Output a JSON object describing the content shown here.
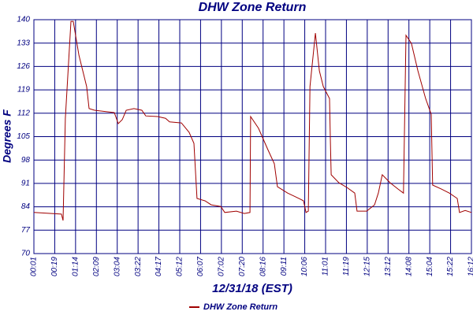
{
  "chart_data": {
    "type": "line",
    "title": "DHW Zone Return",
    "x_label": "12/31/18 (EST)",
    "y_label": "Degrees F",
    "xlim": [
      0,
      21
    ],
    "ylim": [
      70,
      140
    ],
    "xticks": [
      {
        "value": 0,
        "label": "00:01"
      },
      {
        "value": 1,
        "label": "00:19"
      },
      {
        "value": 2,
        "label": "01:14"
      },
      {
        "value": 3,
        "label": "02:09"
      },
      {
        "value": 4,
        "label": "03:04"
      },
      {
        "value": 5,
        "label": "03:22"
      },
      {
        "value": 6,
        "label": "04:17"
      },
      {
        "value": 7,
        "label": "05:12"
      },
      {
        "value": 8,
        "label": "06:07"
      },
      {
        "value": 9,
        "label": "07:02"
      },
      {
        "value": 10,
        "label": "07:20"
      },
      {
        "value": 11,
        "label": "08:16"
      },
      {
        "value": 12,
        "label": "09:11"
      },
      {
        "value": 13,
        "label": "10:06"
      },
      {
        "value": 14,
        "label": "11:01"
      },
      {
        "value": 15,
        "label": "11:19"
      },
      {
        "value": 16,
        "label": "12:15"
      },
      {
        "value": 17,
        "label": "13:12"
      },
      {
        "value": 18,
        "label": "14:08"
      },
      {
        "value": 19,
        "label": "15:04"
      },
      {
        "value": 20,
        "label": "15:22"
      },
      {
        "value": 21,
        "label": "16:12"
      }
    ],
    "yticks": [
      70,
      77,
      84,
      91,
      98,
      105,
      112,
      119,
      126,
      133,
      140
    ],
    "grid": true,
    "legend": "bottom",
    "series": [
      {
        "name": "DHW Zone Return",
        "color": "#a00000",
        "x": [
          0,
          1.32,
          1.4,
          1.51,
          1.78,
          1.89,
          2.16,
          2.53,
          2.65,
          2.91,
          3.86,
          4.05,
          4.24,
          4.43,
          4.8,
          5.18,
          5.37,
          5.94,
          6.32,
          6.51,
          7.08,
          7.45,
          7.68,
          7.83,
          8.21,
          8.51,
          8.97,
          9.16,
          9.72,
          10.1,
          10.37,
          10.4,
          10.78,
          11.23,
          11.54,
          11.69,
          12.18,
          12.56,
          12.94,
          13.06,
          13.17,
          13.25,
          13.51,
          13.7,
          13.89,
          14.19,
          14.23,
          14.27,
          14.64,
          15.02,
          15.4,
          15.51,
          15.97,
          16.35,
          16.53,
          16.72,
          17.1,
          17.48,
          17.74,
          17.86,
          18.12,
          18.43,
          18.8,
          19.07,
          19.14,
          19.56,
          19.94,
          20.32,
          20.43,
          20.7,
          21
        ],
        "values": [
          82.3,
          81.8,
          79.9,
          110.5,
          139.5,
          139.5,
          129.4,
          120,
          113.4,
          112.9,
          112.2,
          108.9,
          110.1,
          112.9,
          113.4,
          112.9,
          111.2,
          111,
          110.5,
          109.4,
          109.1,
          106.3,
          103,
          86.5,
          85.8,
          84.6,
          84.1,
          82.3,
          82.7,
          82,
          82.3,
          111,
          107.5,
          101.1,
          96.9,
          90,
          88.1,
          87,
          85.8,
          82.3,
          82.7,
          120,
          136,
          124.7,
          120,
          116.4,
          103.5,
          93.6,
          91.2,
          89.8,
          88.1,
          82.7,
          82.7,
          84.6,
          88.1,
          93.6,
          91.2,
          89.3,
          88.1,
          135.3,
          132.9,
          124.7,
          116.4,
          111.7,
          90.5,
          89.3,
          88.1,
          86.5,
          82.3,
          82.9,
          82.3
        ]
      }
    ]
  }
}
